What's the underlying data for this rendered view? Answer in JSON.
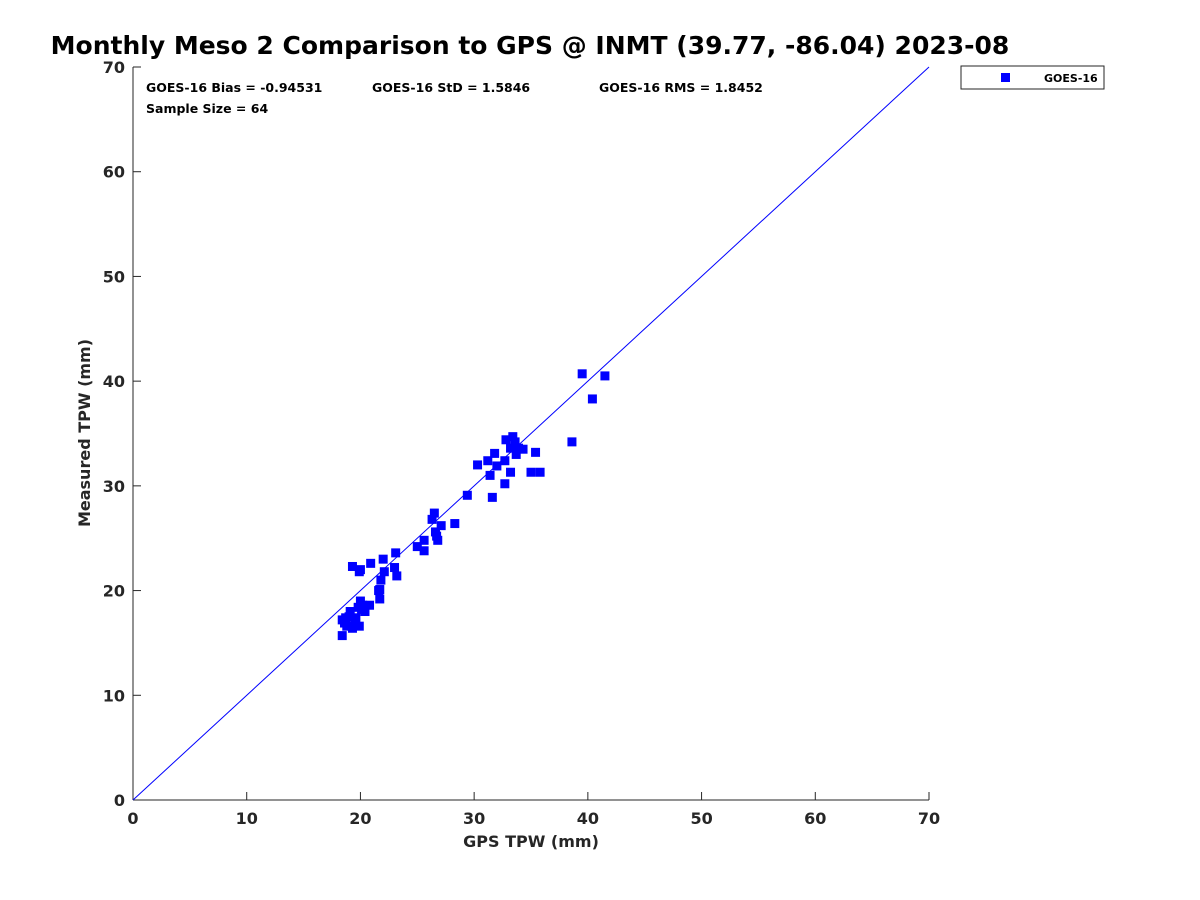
{
  "chart_data": {
    "type": "scatter",
    "title": "Monthly Meso 2 Comparison to GPS @ INMT (39.77, -86.04) 2023-08",
    "xlabel": "GPS TPW (mm)",
    "ylabel": "Measured TPW (mm)",
    "xlim": [
      0,
      70
    ],
    "ylim": [
      0,
      70
    ],
    "xticks": [
      "0",
      "10",
      "20",
      "30",
      "40",
      "50",
      "60",
      "70"
    ],
    "yticks": [
      "0",
      "10",
      "20",
      "30",
      "40",
      "50",
      "60",
      "70"
    ],
    "reference_line": {
      "from": [
        0,
        0
      ],
      "to": [
        70,
        70
      ],
      "color": "#0000ff"
    },
    "stats": {
      "bias": "GOES-16 Bias = -0.94531",
      "std": "GOES-16 StD = 1.5846",
      "rms": "GOES-16 RMS = 1.8452",
      "sample": "Sample Size = 64"
    },
    "legend": {
      "position": "top-right-outside",
      "label": "GOES-16"
    },
    "series": [
      {
        "name": "GOES-16",
        "color": "#0000ff",
        "marker": "square",
        "points": [
          [
            18.4,
            15.7
          ],
          [
            18.4,
            17.2
          ],
          [
            18.6,
            16.9
          ],
          [
            18.8,
            16.6
          ],
          [
            19.0,
            17.5
          ],
          [
            19.1,
            18.0
          ],
          [
            19.3,
            16.4
          ],
          [
            19.6,
            17.4
          ],
          [
            19.8,
            18.4
          ],
          [
            19.9,
            16.6
          ],
          [
            20.0,
            19.0
          ],
          [
            20.2,
            18.6
          ],
          [
            20.4,
            18.0
          ],
          [
            20.8,
            18.6
          ],
          [
            19.3,
            22.3
          ],
          [
            19.9,
            21.8
          ],
          [
            20.0,
            22.0
          ],
          [
            20.9,
            22.6
          ],
          [
            21.6,
            20.0
          ],
          [
            21.7,
            19.2
          ],
          [
            21.8,
            21.0
          ],
          [
            22.0,
            23.0
          ],
          [
            22.1,
            21.8
          ],
          [
            23.0,
            22.2
          ],
          [
            23.1,
            23.6
          ],
          [
            23.2,
            21.4
          ],
          [
            25.0,
            24.2
          ],
          [
            25.6,
            24.8
          ],
          [
            25.6,
            23.8
          ],
          [
            26.3,
            26.8
          ],
          [
            26.5,
            27.4
          ],
          [
            26.6,
            25.6
          ],
          [
            26.7,
            25.2
          ],
          [
            26.8,
            24.8
          ],
          [
            27.1,
            26.2
          ],
          [
            28.3,
            26.4
          ],
          [
            29.4,
            29.1
          ],
          [
            30.3,
            32.0
          ],
          [
            31.2,
            32.4
          ],
          [
            31.4,
            31.0
          ],
          [
            31.6,
            28.9
          ],
          [
            31.8,
            33.1
          ],
          [
            32.0,
            31.9
          ],
          [
            32.7,
            32.4
          ],
          [
            32.7,
            30.2
          ],
          [
            32.8,
            34.4
          ],
          [
            33.2,
            33.6
          ],
          [
            33.2,
            31.3
          ],
          [
            33.4,
            34.7
          ],
          [
            33.6,
            34.2
          ],
          [
            33.7,
            33.0
          ],
          [
            33.9,
            33.6
          ],
          [
            34.3,
            33.5
          ],
          [
            35.0,
            31.3
          ],
          [
            35.4,
            33.2
          ],
          [
            35.8,
            31.3
          ],
          [
            38.6,
            34.2
          ],
          [
            39.5,
            40.7
          ],
          [
            40.4,
            38.3
          ],
          [
            41.5,
            40.5
          ],
          [
            18.7,
            17.4
          ],
          [
            19.5,
            16.7
          ],
          [
            20.1,
            18.2
          ],
          [
            21.7,
            20.1
          ]
        ]
      }
    ]
  }
}
